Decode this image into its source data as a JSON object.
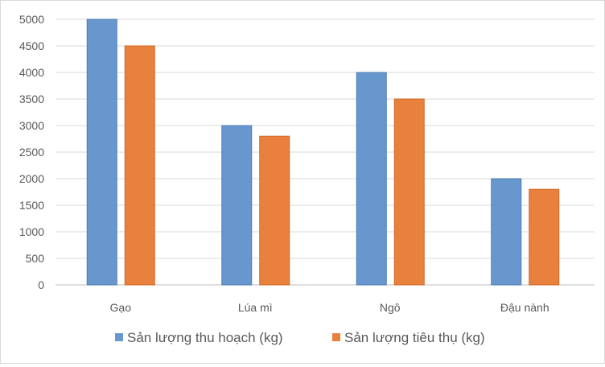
{
  "chart_data": {
    "type": "bar",
    "title": "",
    "xlabel": "",
    "ylabel": "",
    "categories": [
      "Gạo",
      "Lúa mì",
      "Ngô",
      "Đậu nành"
    ],
    "series": [
      {
        "name": "Sản lượng thu hoạch (kg)",
        "values": [
          5000,
          3000,
          4000,
          2000
        ],
        "color": "#6797cd",
        "border": "#4f7db5"
      },
      {
        "name": "Sản lượng tiêu thụ (kg)",
        "values": [
          4500,
          2800,
          3500,
          1800
        ],
        "color": "#e8803e",
        "border": "#cf6a26"
      }
    ],
    "ylim": [
      0,
      5000
    ],
    "yticks": [
      0,
      500,
      1000,
      1500,
      2000,
      2500,
      3000,
      3500,
      4000,
      4500,
      5000
    ],
    "grid": true,
    "legend": "bottom"
  }
}
